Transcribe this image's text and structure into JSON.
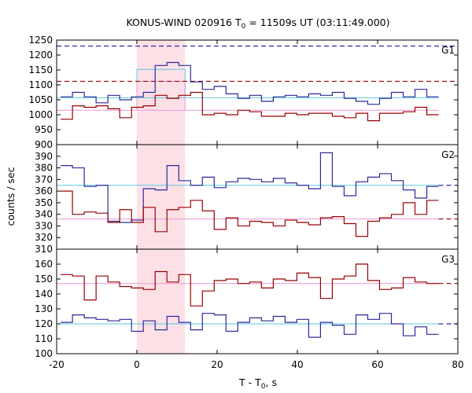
{
  "title": {
    "prefix": "KONUS-WIND 020916 T",
    "sub": "0",
    "suffix": " = 11509s UT (03:11:49.000)"
  },
  "xlabel": {
    "prefix": "T - T",
    "sub": "0",
    "suffix": ", s"
  },
  "ylabel": "counts / sec",
  "chart_data": {
    "type": "line",
    "step": true,
    "x_step_s": 2.944,
    "x_start": -19.0,
    "xlim": [
      -20,
      80
    ],
    "xticks": [
      -20,
      0,
      20,
      40,
      60,
      80
    ],
    "shaded_interval": [
      0,
      12
    ],
    "colors": {
      "blue": "#2a2a9a",
      "red": "#990000",
      "cyan": "#5bc8e6",
      "pink": "#e896d8",
      "shade": "#fde0e6"
    },
    "panels": [
      {
        "name": "G1",
        "ylim": [
          900,
          1250
        ],
        "yticks": [
          900,
          950,
          1000,
          1050,
          1100,
          1150,
          1200,
          1250
        ],
        "series": [
          {
            "color": "blue",
            "values": [
              1060,
              1075,
              1060,
              1040,
              1065,
              1050,
              1060,
              1075,
              1165,
              1175,
              1165,
              1110,
              1085,
              1095,
              1070,
              1055,
              1065,
              1045,
              1060,
              1065,
              1060,
              1070,
              1065,
              1075,
              1055,
              1045,
              1035,
              1055,
              1075,
              1060,
              1085,
              1060
            ]
          },
          {
            "color": "red",
            "values": [
              985,
              1030,
              1025,
              1030,
              1020,
              990,
              1025,
              1030,
              1065,
              1055,
              1065,
              1075,
              1000,
              1005,
              1000,
              1015,
              1010,
              995,
              995,
              1005,
              1000,
              1005,
              1005,
              995,
              990,
              1005,
              980,
              1005,
              1005,
              1010,
              1025,
              1000
            ]
          }
        ],
        "levels": [
          {
            "color": "cyan",
            "value": 1057
          },
          {
            "color": "pink",
            "value": 1015
          }
        ],
        "interval_means": [
          {
            "color": "cyan",
            "value": 1152
          },
          {
            "color": "pink",
            "value": 1112
          }
        ],
        "dashed_levels": [
          {
            "color": "blue",
            "value": 1230
          },
          {
            "color": "red",
            "value": 1112
          }
        ]
      },
      {
        "name": "G2",
        "ylim": [
          310,
          400
        ],
        "yticks": [
          310,
          320,
          330,
          340,
          350,
          360,
          370,
          380,
          390,
          400
        ],
        "series": [
          {
            "color": "blue",
            "values": [
              382,
              380,
              364,
              365,
              334,
              333,
              335,
              362,
              361,
              382,
              369,
              365,
              372,
              363,
              368,
              371,
              370,
              368,
              371,
              367,
              365,
              362,
              393,
              364,
              356,
              368,
              372,
              375,
              369,
              361,
              354,
              364
            ]
          },
          {
            "color": "red",
            "values": [
              360,
              340,
              342,
              341,
              333,
              344,
              333,
              346,
              325,
              344,
              346,
              352,
              343,
              327,
              337,
              330,
              334,
              333,
              330,
              335,
              333,
              331,
              337,
              338,
              332,
              321,
              334,
              337,
              340,
              350,
              340,
              352
            ]
          }
        ],
        "levels": [
          {
            "color": "cyan",
            "value": 365
          },
          {
            "color": "pink",
            "value": 336
          }
        ],
        "dashed_levels": [
          {
            "color": "blue",
            "value": 365
          },
          {
            "color": "red",
            "value": 336
          }
        ]
      },
      {
        "name": "G3",
        "ylim": [
          100,
          170
        ],
        "yticks": [
          100,
          110,
          120,
          130,
          140,
          150,
          160
        ],
        "series": [
          {
            "color": "blue",
            "values": [
              121,
              126,
              124,
              123,
              122,
              123,
              115,
              122,
              116,
              125,
              121,
              116,
              127,
              126,
              115,
              121,
              124,
              122,
              125,
              121,
              123,
              111,
              121,
              119,
              113,
              126,
              123,
              127,
              120,
              112,
              118,
              113
            ]
          },
          {
            "color": "red",
            "values": [
              153,
              152,
              136,
              152,
              148,
              145,
              144,
              143,
              155,
              148,
              153,
              132,
              142,
              149,
              150,
              147,
              148,
              144,
              150,
              149,
              154,
              151,
              137,
              150,
              152,
              160,
              149,
              143,
              144,
              151,
              148,
              147
            ]
          }
        ],
        "levels": [
          {
            "color": "cyan",
            "value": 120
          },
          {
            "color": "pink",
            "value": 147
          }
        ],
        "dashed_levels": [
          {
            "color": "blue",
            "value": 120
          },
          {
            "color": "red",
            "value": 147
          }
        ]
      }
    ]
  }
}
